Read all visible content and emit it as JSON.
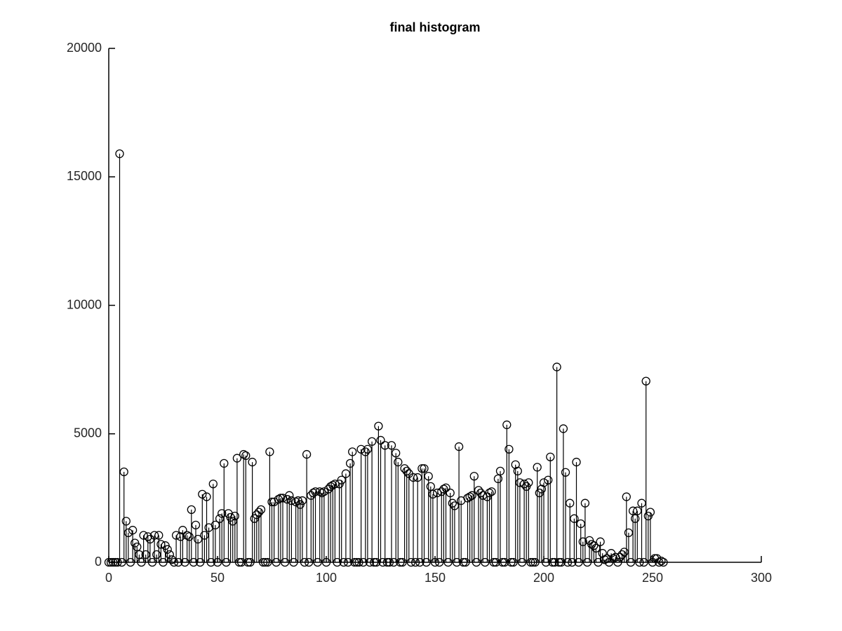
{
  "chart_data": {
    "type": "stem",
    "title": "final histogram",
    "x": [
      0,
      1,
      2,
      3,
      4,
      5,
      6,
      7,
      8,
      9,
      10,
      11,
      12,
      13,
      14,
      15,
      16,
      17,
      18,
      19,
      20,
      21,
      22,
      23,
      24,
      25,
      26,
      27,
      28,
      29,
      30,
      31,
      32,
      33,
      34,
      35,
      36,
      37,
      38,
      39,
      40,
      41,
      42,
      43,
      44,
      45,
      46,
      47,
      48,
      49,
      50,
      51,
      52,
      53,
      54,
      55,
      56,
      57,
      58,
      59,
      60,
      61,
      62,
      63,
      64,
      65,
      66,
      67,
      68,
      69,
      70,
      71,
      72,
      73,
      74,
      75,
      76,
      77,
      78,
      79,
      80,
      81,
      82,
      83,
      84,
      85,
      86,
      87,
      88,
      89,
      90,
      91,
      92,
      93,
      94,
      95,
      96,
      97,
      98,
      99,
      100,
      101,
      102,
      103,
      104,
      105,
      106,
      107,
      108,
      109,
      110,
      111,
      112,
      113,
      114,
      115,
      116,
      117,
      118,
      119,
      120,
      121,
      122,
      123,
      124,
      125,
      126,
      127,
      128,
      129,
      130,
      131,
      132,
      133,
      134,
      135,
      136,
      137,
      138,
      139,
      140,
      141,
      142,
      143,
      144,
      145,
      146,
      147,
      148,
      149,
      150,
      151,
      152,
      153,
      154,
      155,
      156,
      157,
      158,
      159,
      160,
      161,
      162,
      163,
      164,
      165,
      166,
      167,
      168,
      169,
      170,
      171,
      172,
      173,
      174,
      175,
      176,
      177,
      178,
      179,
      180,
      181,
      182,
      183,
      184,
      185,
      186,
      187,
      188,
      189,
      190,
      191,
      192,
      193,
      194,
      195,
      196,
      197,
      198,
      199,
      200,
      201,
      202,
      203,
      204,
      205,
      206,
      207,
      208,
      209,
      210,
      211,
      212,
      213,
      214,
      215,
      216,
      217,
      218,
      219,
      220,
      221,
      222,
      223,
      224,
      225,
      226,
      227,
      228,
      229,
      230,
      231,
      232,
      233,
      234,
      235,
      236,
      237,
      238,
      239,
      240,
      241,
      242,
      243,
      244,
      245,
      246,
      247,
      248,
      249,
      250,
      251,
      252,
      253,
      254,
      255
    ],
    "values": [
      0,
      0,
      0,
      0,
      0,
      15900,
      0,
      3520,
      1600,
      1150,
      0,
      1250,
      750,
      600,
      300,
      0,
      1050,
      300,
      1000,
      900,
      0,
      1050,
      300,
      1050,
      700,
      0,
      650,
      500,
      300,
      100,
      0,
      1050,
      0,
      1000,
      1250,
      0,
      1050,
      1000,
      2050,
      0,
      1450,
      900,
      0,
      2650,
      1050,
      2550,
      1350,
      0,
      3050,
      1450,
      0,
      1700,
      1900,
      3850,
      0,
      1900,
      1750,
      1600,
      1800,
      4050,
      0,
      0,
      4200,
      4150,
      0,
      0,
      3900,
      1700,
      1850,
      1950,
      2050,
      0,
      0,
      0,
      4300,
      2350,
      2350,
      0,
      2450,
      2500,
      2500,
      0,
      2450,
      2600,
      2400,
      0,
      2350,
      2400,
      2250,
      2400,
      0,
      4200,
      0,
      2600,
      2700,
      2750,
      0,
      2750,
      2700,
      2750,
      0,
      2850,
      2950,
      3000,
      3050,
      0,
      3050,
      3200,
      0,
      3450,
      0,
      3850,
      4300,
      0,
      0,
      0,
      4400,
      0,
      4300,
      4400,
      0,
      4700,
      0,
      0,
      5300,
      4750,
      0,
      4550,
      0,
      0,
      4550,
      0,
      4250,
      3900,
      0,
      0,
      3650,
      3550,
      3450,
      0,
      3300,
      0,
      3300,
      0,
      3650,
      3650,
      0,
      3350,
      2950,
      2650,
      0,
      2700,
      0,
      2750,
      2850,
      2900,
      0,
      2700,
      2300,
      2200,
      0,
      4500,
      2400,
      0,
      0,
      2500,
      2550,
      2600,
      3350,
      0,
      2800,
      2700,
      2600,
      0,
      2550,
      2700,
      2750,
      0,
      0,
      3250,
      3550,
      0,
      0,
      5350,
      4400,
      0,
      0,
      3800,
      3550,
      3100,
      0,
      3050,
      2950,
      3100,
      0,
      0,
      0,
      3700,
      2700,
      2850,
      3100,
      0,
      3200,
      4100,
      0,
      0,
      7600,
      0,
      0,
      5200,
      3500,
      0,
      2300,
      0,
      1700,
      3900,
      0,
      1500,
      800,
      2300,
      0,
      850,
      700,
      650,
      550,
      0,
      800,
      350,
      100,
      150,
      0,
      350,
      150,
      200,
      0,
      200,
      300,
      400,
      2550,
      1150,
      0,
      2000,
      1700,
      2000,
      0,
      2300,
      0,
      7050,
      1800,
      1950,
      0,
      150,
      150,
      0,
      50,
      0
    ],
    "color": "#000000",
    "xlim": [
      0,
      300
    ],
    "xticks": [
      0,
      50,
      100,
      150,
      200,
      250,
      300
    ],
    "ylim": [
      0,
      20000
    ],
    "yticks": [
      0,
      5000,
      10000,
      15000,
      20000
    ]
  }
}
